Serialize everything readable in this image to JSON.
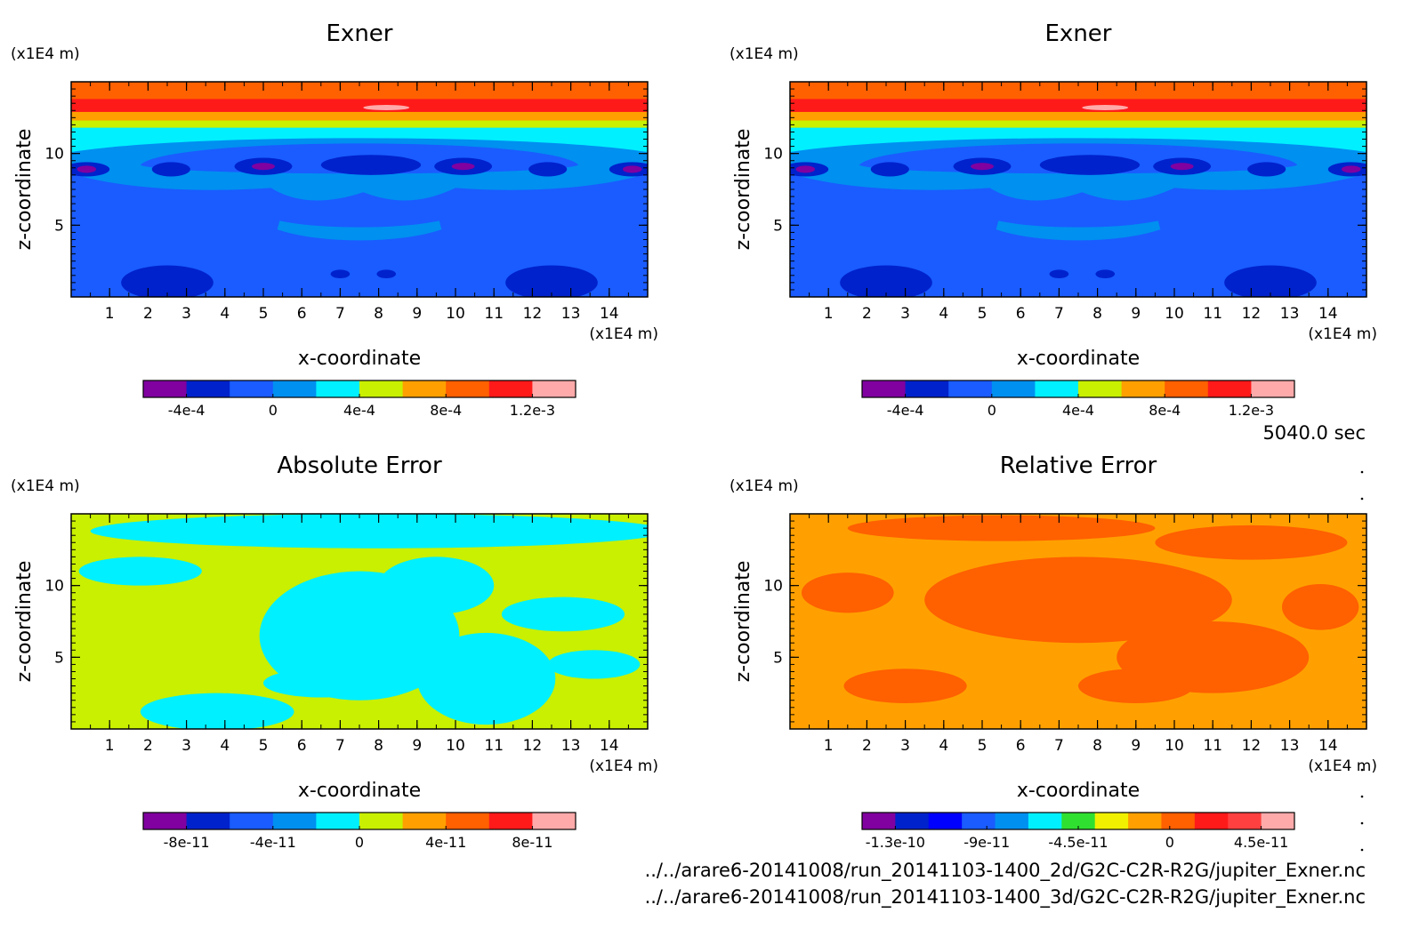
{
  "time_label": "5040.0 sec",
  "files": [
    "../../arare6-20141008/run_20141103-1400_2d/G2C-C2R-R2G/jupiter_Exner.nc",
    "../../arare6-20141008/run_20141103-1400_3d/G2C-C2R-R2G/jupiter_Exner.nc"
  ],
  "chart_data": [
    {
      "type": "heatmap",
      "title": "Exner",
      "xlabel": "x-coordinate",
      "ylabel": "z-coordinate",
      "x_unit": "(x1E4 m)",
      "y_unit": "(x1E4 m)",
      "xlim": [
        0,
        15
      ],
      "ylim": [
        0,
        15
      ],
      "xticks": [
        1,
        2,
        3,
        4,
        5,
        6,
        7,
        8,
        9,
        10,
        11,
        12,
        13,
        14
      ],
      "yticks": [
        5,
        10
      ],
      "colorbar": {
        "colors": [
          "#8000a0",
          "#0022cc",
          "#1a5cff",
          "#0090f0",
          "#00f0ff",
          "#c8f000",
          "#ffa000",
          "#ff6000",
          "#ff1a1a",
          "#ffaaaa"
        ],
        "labels": [
          "-4e-4",
          "0",
          "4e-4",
          "8e-4",
          "1.2e-3"
        ]
      },
      "field_ranges": {
        "top_band_z": [
          12.8,
          15
        ],
        "cyan_band_z": [
          10.2,
          12.0
        ],
        "low_pressure_centers_x": [
          0.4,
          5.0,
          7.8,
          10.2,
          14.6
        ]
      }
    },
    {
      "type": "heatmap",
      "title": "Exner",
      "xlabel": "x-coordinate",
      "ylabel": "z-coordinate",
      "x_unit": "(x1E4 m)",
      "y_unit": "(x1E4 m)",
      "xlim": [
        0,
        15
      ],
      "ylim": [
        0,
        15
      ],
      "xticks": [
        1,
        2,
        3,
        4,
        5,
        6,
        7,
        8,
        9,
        10,
        11,
        12,
        13,
        14
      ],
      "yticks": [
        5,
        10
      ],
      "colorbar": {
        "colors": [
          "#8000a0",
          "#0022cc",
          "#1a5cff",
          "#0090f0",
          "#00f0ff",
          "#c8f000",
          "#ffa000",
          "#ff6000",
          "#ff1a1a",
          "#ffaaaa"
        ],
        "labels": [
          "-4e-4",
          "0",
          "4e-4",
          "8e-4",
          "1.2e-3"
        ]
      }
    },
    {
      "type": "heatmap",
      "title": "Absolute Error",
      "xlabel": "x-coordinate",
      "ylabel": "z-coordinate",
      "x_unit": "(x1E4 m)",
      "y_unit": "(x1E4 m)",
      "xlim": [
        0,
        15
      ],
      "ylim": [
        0,
        15
      ],
      "xticks": [
        1,
        2,
        3,
        4,
        5,
        6,
        7,
        8,
        9,
        10,
        11,
        12,
        13,
        14
      ],
      "yticks": [
        5,
        10
      ],
      "dominant_colors": [
        "#c8f000",
        "#00f0ff"
      ],
      "colorbar": {
        "colors": [
          "#8000a0",
          "#0022cc",
          "#1a5cff",
          "#0090f0",
          "#00f0ff",
          "#c8f000",
          "#ffa000",
          "#ff6000",
          "#ff1a1a",
          "#ffaaaa"
        ],
        "labels": [
          "-8e-11",
          "-4e-11",
          "0",
          "4e-11",
          "8e-11"
        ]
      }
    },
    {
      "type": "heatmap",
      "title": "Relative Error",
      "xlabel": "x-coordinate",
      "ylabel": "z-coordinate",
      "x_unit": "(x1E4 m)",
      "y_unit": "(x1E4 m)",
      "xlim": [
        0,
        15
      ],
      "ylim": [
        0,
        15
      ],
      "xticks": [
        1,
        2,
        3,
        4,
        5,
        6,
        7,
        8,
        9,
        10,
        11,
        12,
        13,
        14
      ],
      "yticks": [
        5,
        10
      ],
      "dominant_colors": [
        "#ffa000",
        "#ff6000"
      ],
      "colorbar": {
        "colors": [
          "#8000a0",
          "#0022cc",
          "#0000ff",
          "#1a5cff",
          "#0090f0",
          "#00f0ff",
          "#30e030",
          "#f0f000",
          "#ffa000",
          "#ff6000",
          "#ff1a1a",
          "#ff4040",
          "#ffaaaa"
        ],
        "labels": [
          "-1.3e-10",
          "-9e-11",
          "-4.5e-11",
          "0",
          "4.5e-11"
        ]
      }
    }
  ]
}
